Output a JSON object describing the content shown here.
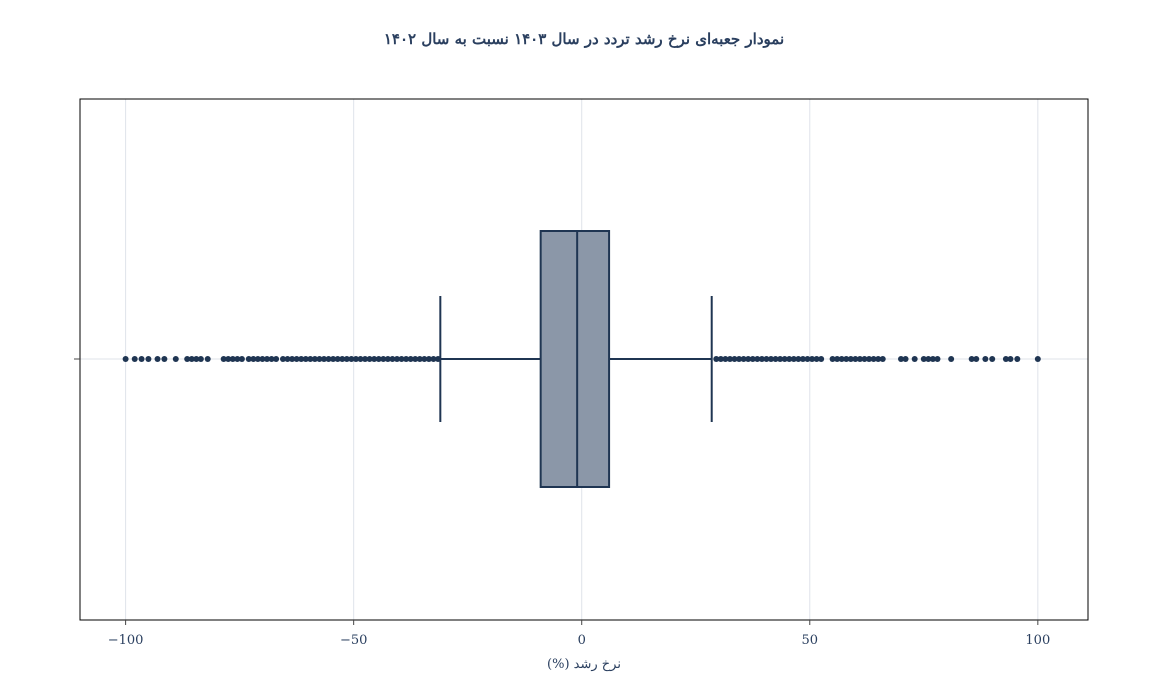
{
  "chart_data": {
    "type": "box",
    "orientation": "horizontal",
    "title": "نمودار جعبه‌ای نرخ رشد تردد در سال ۱۴۰۳ نسبت به سال ۱۴۰۲",
    "xlabel": "نرخ رشد (%)",
    "ylabel": "",
    "xlim": [
      -110,
      111
    ],
    "xticks": [
      -100,
      -50,
      0,
      50,
      100
    ],
    "xtick_labels": [
      "−100",
      "−50",
      "0",
      "50",
      "100"
    ],
    "grid": true,
    "legend": "none",
    "box": {
      "lower_whisker": -31,
      "q1": -9,
      "median": -1,
      "q3": 6,
      "upper_whisker": 28.5
    },
    "outliers": [
      -100,
      -98,
      -96.5,
      -95,
      -93,
      -91.5,
      -89,
      -86.5,
      -85.5,
      -84.5,
      -83.5,
      -82,
      -78.5,
      -77.5,
      -76.5,
      -75.5,
      -74.5,
      -73,
      -72,
      -71,
      -70,
      -69,
      -68,
      -67,
      -65.5,
      -64.5,
      -63.5,
      -62.5,
      -61.5,
      -60.5,
      -59.5,
      -58.5,
      -57.5,
      -56.5,
      -55.5,
      -54.5,
      -53.5,
      -52.5,
      -51.5,
      -50.5,
      -49.5,
      -48.5,
      -47.5,
      -46.5,
      -45.5,
      -44.5,
      -43.5,
      -42.5,
      -41.5,
      -40.5,
      -39.5,
      -38.5,
      -37.5,
      -36.5,
      -35.5,
      -34.5,
      -33.5,
      -32.5,
      -31.5,
      29.5,
      30.5,
      31.5,
      32.5,
      33.5,
      34.5,
      35.5,
      36.5,
      37.5,
      38.5,
      39.5,
      40.5,
      41.5,
      42.5,
      43.5,
      44.5,
      45.5,
      46.5,
      47.5,
      48.5,
      49.5,
      50.5,
      51.5,
      52.5,
      55,
      56,
      57,
      58,
      59,
      60,
      61,
      62,
      63,
      64,
      65,
      66,
      70,
      71,
      73,
      75,
      76,
      77,
      78,
      81,
      85.5,
      86.5,
      88.5,
      90,
      93,
      94,
      95.5,
      100
    ],
    "colors": {
      "box_fill": "#8b97a8",
      "line": "#1f3552",
      "grid": "#dfe3ea",
      "text": "#2a3f5f"
    }
  }
}
